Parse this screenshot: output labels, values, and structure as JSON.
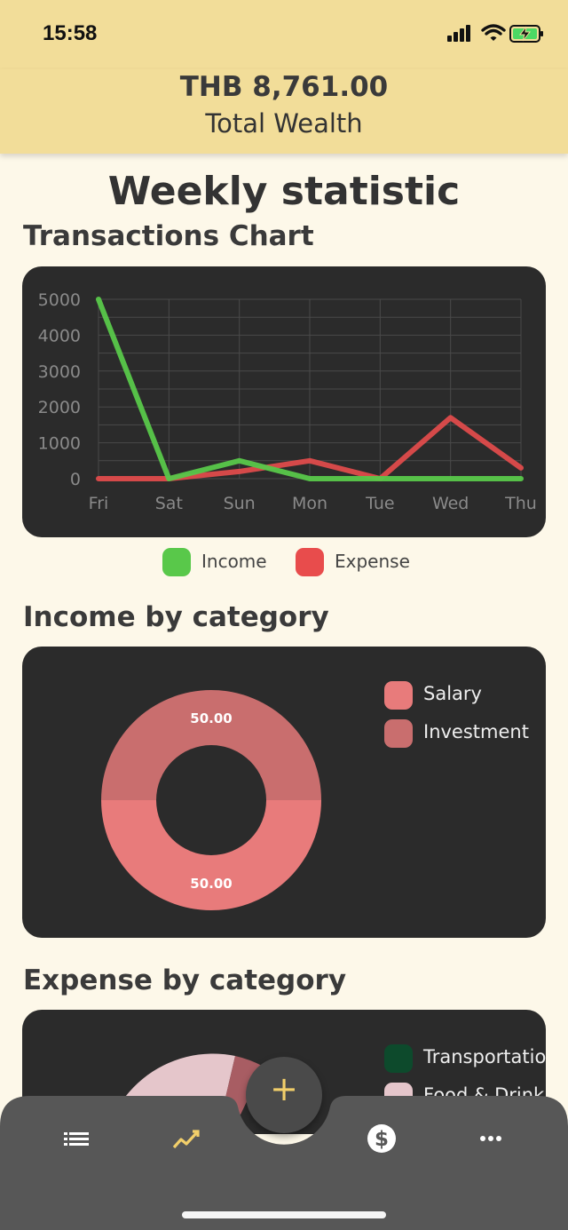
{
  "status": {
    "time": "15:58"
  },
  "header": {
    "amount": "THB 8,761.00",
    "label": "Total Wealth"
  },
  "page_title": "Weekly statistic",
  "sections": {
    "transactions": "Transactions Chart",
    "income": "Income by category",
    "expense": "Expense by category"
  },
  "chart_data": [
    {
      "type": "line",
      "title": "Transactions Chart",
      "categories": [
        "Fri",
        "Sat",
        "Sun",
        "Mon",
        "Tue",
        "Wed",
        "Thu"
      ],
      "ylim": [
        0,
        5000
      ],
      "yticks": [
        "5000",
        "4000",
        "3000",
        "2000",
        "1000",
        "0"
      ],
      "grid": true,
      "legend_position": "bottom",
      "series": [
        {
          "name": "Income",
          "color": "#59c84a",
          "values": [
            5000,
            0,
            500,
            0,
            0,
            0,
            0
          ]
        },
        {
          "name": "Expense",
          "color": "#e84c4c",
          "values": [
            0,
            0,
            200,
            500,
            0,
            1700,
            300
          ]
        }
      ]
    },
    {
      "type": "pie",
      "title": "Income by category",
      "legend_position": "right",
      "slices": [
        {
          "name": "Salary",
          "value": 50.0,
          "label": "50.00",
          "color": "#e87b7b"
        },
        {
          "name": "Investment",
          "value": 50.0,
          "label": "50.00",
          "color": "#c96e6e"
        }
      ]
    },
    {
      "type": "pie",
      "title": "Expense by category",
      "legend_position": "right",
      "slices": [
        {
          "name": "Transportation",
          "color": "#0d4a2c"
        },
        {
          "name": "Food & Drink",
          "color": "#e5c6cb"
        }
      ]
    }
  ],
  "income_legend": {
    "salary": "Salary",
    "investment": "Investment"
  },
  "expense_legend": {
    "transportation": "Transportation",
    "food": "Food & Drink"
  },
  "fab": {
    "label": "+"
  },
  "nav": {
    "items": [
      {
        "icon": "list-icon"
      },
      {
        "icon": "trend-icon"
      },
      {
        "icon": "dollar-icon"
      },
      {
        "icon": "more-icon"
      }
    ]
  }
}
